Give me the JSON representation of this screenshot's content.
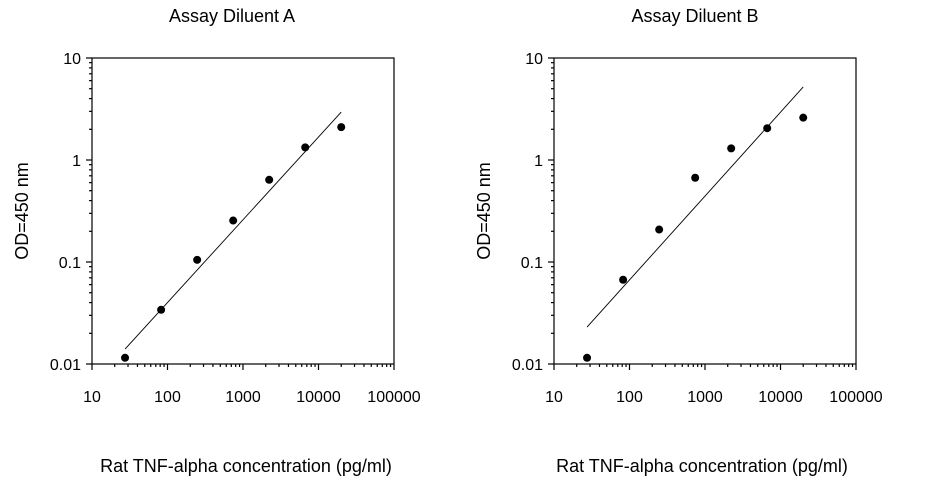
{
  "chart_data": [
    {
      "type": "scatter",
      "title": "Assay Diluent A",
      "xlabel": "Rat TNF-alpha concentration (pg/ml)",
      "ylabel": "OD=450 nm",
      "x_scale": "log",
      "y_scale": "log",
      "xlim": [
        10,
        100000
      ],
      "ylim": [
        0.01,
        10
      ],
      "x_ticks": [
        "10",
        "100",
        "1000",
        "10000",
        "100000"
      ],
      "y_ticks": [
        "0.01",
        "0.1",
        "1",
        "10"
      ],
      "grid": false,
      "series": [
        {
          "x": [
            27.4,
            82.3,
            247,
            741,
            2222,
            6667,
            20000
          ],
          "y": [
            0.0115,
            0.034,
            0.105,
            0.255,
            0.64,
            1.33,
            2.1
          ]
        }
      ],
      "fit_line": {
        "x": [
          27.4,
          20000
        ],
        "y": [
          0.014,
          2.95
        ]
      }
    },
    {
      "type": "scatter",
      "title": "Assay Diluent B",
      "xlabel": "Rat TNF-alpha concentration (pg/ml)",
      "ylabel": "OD=450 nm",
      "x_scale": "log",
      "y_scale": "log",
      "xlim": [
        10,
        100000
      ],
      "ylim": [
        0.01,
        10
      ],
      "x_ticks": [
        "10",
        "100",
        "1000",
        "10000",
        "100000"
      ],
      "y_ticks": [
        "0.01",
        "0.1",
        "1",
        "10"
      ],
      "grid": false,
      "series": [
        {
          "x": [
            27.4,
            82.3,
            247,
            741,
            2222,
            6667,
            20000
          ],
          "y": [
            0.0115,
            0.067,
            0.208,
            0.67,
            1.3,
            2.05,
            2.6
          ]
        }
      ],
      "fit_line": {
        "x": [
          27.4,
          20000
        ],
        "y": [
          0.023,
          5.2
        ]
      }
    }
  ]
}
